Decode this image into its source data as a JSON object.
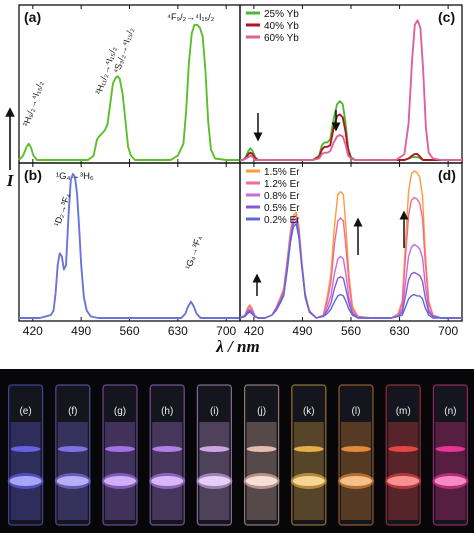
{
  "figure": {
    "xlabel": "λ / nm",
    "ylabel": "I",
    "photo_labels": [
      "(e)",
      "(f)",
      "(g)",
      "(h)",
      "(i)",
      "(j)",
      "(k)",
      "(l)",
      "(m)",
      "(n)"
    ],
    "photo_colors": [
      "#6f6cff",
      "#8f7dff",
      "#b47cff",
      "#c58cff",
      "#e2b6ff",
      "#ffd0c0",
      "#ffc24d",
      "#ff9a3b",
      "#ff4a4a",
      "#ff3aa6"
    ]
  },
  "chart_data": [
    {
      "panel": "(a)",
      "type": "line",
      "xlim": [
        400,
        720
      ],
      "xticks": [
        420,
        490,
        560,
        630,
        700
      ],
      "ylim": [
        0,
        1
      ],
      "color": "#5cbf2a",
      "series": [
        {
          "x": [
            400,
            406,
            411,
            414,
            417,
            421,
            426,
            440,
            470,
            500,
            508,
            513,
            516,
            520,
            524,
            528,
            532,
            536,
            540,
            543,
            546,
            550,
            554,
            558,
            562,
            568,
            580,
            620,
            630,
            638,
            642,
            646,
            650,
            654,
            658,
            662,
            666,
            670,
            674,
            678,
            684,
            700,
            720
          ],
          "y": [
            0.0,
            0.03,
            0.09,
            0.11,
            0.09,
            0.03,
            0.0,
            0.0,
            0.0,
            0.0,
            0.03,
            0.14,
            0.16,
            0.18,
            0.2,
            0.24,
            0.38,
            0.52,
            0.56,
            0.57,
            0.55,
            0.45,
            0.27,
            0.09,
            0.03,
            0.0,
            0.0,
            0.0,
            0.03,
            0.11,
            0.33,
            0.66,
            0.86,
            0.92,
            0.92,
            0.9,
            0.84,
            0.6,
            0.26,
            0.07,
            0.01,
            0.0,
            0.0
          ]
        }
      ],
      "annotations": [
        {
          "text": "²H₉/₂→⁴I₁₅/₂",
          "x": 414
        },
        {
          "text": "²H₁₁/₂→⁴I₁₅/₂",
          "x": 519
        },
        {
          "text": "⁴S₃/₂→⁴I₁₅/₂",
          "x": 545
        },
        {
          "text": "⁴F₉/₂→⁴I₁₅/₂",
          "x": 658
        }
      ]
    },
    {
      "panel": "(b)",
      "type": "line",
      "xlim": [
        400,
        720
      ],
      "xticks": [
        420,
        490,
        560,
        630,
        700
      ],
      "ylim": [
        0,
        1
      ],
      "color": "#6a74d8",
      "series": [
        {
          "x": [
            400,
            430,
            446,
            450,
            453,
            456,
            459,
            462,
            465,
            468,
            472,
            475,
            478,
            481,
            484,
            487,
            490,
            494,
            498,
            504,
            515,
            600,
            635,
            641,
            645,
            649,
            653,
            657,
            663,
            680,
            720
          ],
          "y": [
            0.0,
            0.0,
            0.02,
            0.05,
            0.17,
            0.36,
            0.44,
            0.42,
            0.33,
            0.36,
            0.72,
            0.94,
            0.98,
            0.96,
            0.85,
            0.62,
            0.36,
            0.14,
            0.05,
            0.01,
            0.0,
            0.0,
            0.0,
            0.03,
            0.08,
            0.11,
            0.08,
            0.03,
            0.0,
            0.0,
            0.0
          ]
        }
      ],
      "annotations": [
        {
          "text": "¹G₄→³H₆",
          "x": 478
        },
        {
          "text": "¹D₂→³F₄",
          "x": 459
        },
        {
          "text": "¹G₄→³F₄",
          "x": 649
        }
      ]
    },
    {
      "panel": "(c)",
      "type": "line",
      "xlim": [
        400,
        720
      ],
      "xticks": [
        420,
        490,
        560,
        630,
        700
      ],
      "ylim": [
        0,
        1
      ],
      "series": [
        {
          "name": "25% Yb",
          "color": "#4bb83a",
          "x": [
            400,
            404,
            408,
            412,
            415,
            418,
            422,
            426,
            440,
            475,
            505,
            514,
            518,
            522,
            526,
            530,
            535,
            540,
            544,
            548,
            552,
            556,
            560,
            566,
            580,
            625,
            637,
            643,
            648,
            652,
            656,
            660,
            664,
            668,
            672,
            678,
            690,
            720
          ],
          "y": [
            0.0,
            0.0,
            0.02,
            0.06,
            0.08,
            0.06,
            0.02,
            0.0,
            0.0,
            0.0,
            0.0,
            0.03,
            0.1,
            0.12,
            0.12,
            0.14,
            0.28,
            0.38,
            0.4,
            0.38,
            0.26,
            0.08,
            0.02,
            0.0,
            0.0,
            0.0,
            0.0,
            0.01,
            0.02,
            0.02,
            0.02,
            0.01,
            0.0,
            0.0,
            0.0,
            0.0,
            0.0,
            0.0
          ]
        },
        {
          "name": "40% Yb",
          "color": "#b0141c",
          "x": [
            400,
            404,
            408,
            412,
            415,
            418,
            422,
            426,
            440,
            475,
            505,
            514,
            518,
            522,
            526,
            530,
            535,
            540,
            544,
            548,
            552,
            556,
            560,
            566,
            580,
            625,
            637,
            643,
            648,
            652,
            656,
            660,
            664,
            668,
            672,
            678,
            690,
            720
          ],
          "y": [
            0.0,
            0.0,
            0.01,
            0.04,
            0.05,
            0.04,
            0.01,
            0.0,
            0.0,
            0.0,
            0.0,
            0.02,
            0.07,
            0.09,
            0.09,
            0.1,
            0.22,
            0.3,
            0.31,
            0.29,
            0.2,
            0.06,
            0.01,
            0.0,
            0.0,
            0.0,
            0.0,
            0.01,
            0.03,
            0.04,
            0.04,
            0.02,
            0.0,
            0.0,
            0.0,
            0.0,
            0.0,
            0.0
          ]
        },
        {
          "name": "60% Yb",
          "color": "#e0609a",
          "x": [
            400,
            404,
            408,
            412,
            415,
            418,
            422,
            426,
            440,
            475,
            505,
            514,
            518,
            522,
            526,
            530,
            535,
            540,
            544,
            548,
            552,
            556,
            560,
            566,
            580,
            625,
            637,
            643,
            648,
            652,
            656,
            660,
            664,
            668,
            672,
            678,
            690,
            720
          ],
          "y": [
            0.0,
            0.0,
            0.01,
            0.02,
            0.03,
            0.02,
            0.0,
            0.0,
            0.0,
            0.0,
            0.0,
            0.01,
            0.04,
            0.05,
            0.05,
            0.06,
            0.12,
            0.16,
            0.17,
            0.16,
            0.11,
            0.03,
            0.01,
            0.0,
            0.0,
            0.0,
            0.04,
            0.25,
            0.68,
            0.92,
            0.95,
            0.9,
            0.62,
            0.22,
            0.05,
            0.01,
            0.0,
            0.0
          ]
        }
      ]
    },
    {
      "panel": "(d)",
      "type": "line",
      "xlim": [
        400,
        720
      ],
      "xticks": [
        420,
        490,
        560,
        630,
        700
      ],
      "ylim": [
        0,
        1
      ],
      "series": [
        {
          "name": "1.5% Er",
          "color": "#ff9a3c",
          "x": [
            400,
            407,
            411,
            414,
            417,
            421,
            426,
            436,
            446,
            452,
            458,
            463,
            468,
            473,
            477,
            481,
            485,
            489,
            494,
            500,
            510,
            520,
            526,
            531,
            536,
            541,
            545,
            549,
            553,
            557,
            562,
            570,
            590,
            618,
            628,
            634,
            639,
            643,
            647,
            651,
            655,
            659,
            663,
            667,
            672,
            678,
            690,
            720
          ],
          "y": [
            0.0,
            0.02,
            0.07,
            0.09,
            0.07,
            0.02,
            0.0,
            0.0,
            0.02,
            0.07,
            0.14,
            0.2,
            0.4,
            0.6,
            0.7,
            0.72,
            0.62,
            0.4,
            0.17,
            0.05,
            0.0,
            0.02,
            0.15,
            0.3,
            0.62,
            0.84,
            0.86,
            0.84,
            0.6,
            0.3,
            0.08,
            0.01,
            0.0,
            0.0,
            0.03,
            0.12,
            0.55,
            0.86,
            0.98,
            1.0,
            0.99,
            0.96,
            0.83,
            0.46,
            0.12,
            0.02,
            0.0,
            0.0
          ]
        },
        {
          "name": "1.2% Er",
          "color": "#f06a9a",
          "x": [
            400,
            407,
            411,
            414,
            417,
            421,
            426,
            436,
            446,
            452,
            458,
            463,
            468,
            473,
            477,
            481,
            485,
            489,
            494,
            500,
            510,
            520,
            526,
            531,
            536,
            541,
            545,
            549,
            553,
            557,
            562,
            570,
            590,
            618,
            628,
            634,
            639,
            643,
            647,
            651,
            655,
            659,
            663,
            667,
            672,
            678,
            690,
            720
          ],
          "y": [
            0.0,
            0.02,
            0.06,
            0.08,
            0.06,
            0.02,
            0.0,
            0.0,
            0.02,
            0.07,
            0.13,
            0.19,
            0.38,
            0.58,
            0.68,
            0.7,
            0.6,
            0.38,
            0.16,
            0.05,
            0.0,
            0.02,
            0.12,
            0.24,
            0.5,
            0.66,
            0.68,
            0.66,
            0.47,
            0.24,
            0.06,
            0.01,
            0.0,
            0.0,
            0.02,
            0.1,
            0.44,
            0.7,
            0.8,
            0.82,
            0.81,
            0.78,
            0.68,
            0.38,
            0.1,
            0.02,
            0.0,
            0.0
          ]
        },
        {
          "name": "0.8% Er",
          "color": "#c86ad8",
          "x": [
            400,
            407,
            411,
            414,
            417,
            421,
            426,
            436,
            446,
            452,
            458,
            463,
            468,
            473,
            477,
            481,
            485,
            489,
            494,
            500,
            510,
            520,
            526,
            531,
            536,
            541,
            545,
            549,
            553,
            557,
            562,
            570,
            590,
            618,
            628,
            634,
            639,
            643,
            647,
            651,
            655,
            659,
            663,
            667,
            672,
            678,
            690,
            720
          ],
          "y": [
            0.0,
            0.01,
            0.05,
            0.06,
            0.05,
            0.01,
            0.0,
            0.0,
            0.02,
            0.06,
            0.12,
            0.17,
            0.36,
            0.56,
            0.66,
            0.68,
            0.58,
            0.37,
            0.15,
            0.04,
            0.0,
            0.01,
            0.08,
            0.15,
            0.3,
            0.4,
            0.42,
            0.4,
            0.29,
            0.14,
            0.04,
            0.0,
            0.0,
            0.0,
            0.02,
            0.06,
            0.26,
            0.42,
            0.48,
            0.5,
            0.49,
            0.47,
            0.41,
            0.23,
            0.06,
            0.01,
            0.0,
            0.0
          ]
        },
        {
          "name": "0.5% Er",
          "color": "#8a5ad0",
          "x": [
            400,
            407,
            411,
            414,
            417,
            421,
            426,
            436,
            446,
            452,
            458,
            463,
            468,
            473,
            477,
            481,
            485,
            489,
            494,
            500,
            510,
            520,
            526,
            531,
            536,
            541,
            545,
            549,
            553,
            557,
            562,
            570,
            590,
            618,
            628,
            634,
            639,
            643,
            647,
            651,
            655,
            659,
            663,
            667,
            672,
            678,
            690,
            720
          ],
          "y": [
            0.0,
            0.01,
            0.04,
            0.05,
            0.04,
            0.01,
            0.0,
            0.0,
            0.02,
            0.06,
            0.11,
            0.16,
            0.34,
            0.54,
            0.64,
            0.66,
            0.56,
            0.36,
            0.15,
            0.04,
            0.0,
            0.01,
            0.05,
            0.1,
            0.2,
            0.27,
            0.28,
            0.27,
            0.19,
            0.1,
            0.03,
            0.0,
            0.0,
            0.0,
            0.01,
            0.04,
            0.16,
            0.26,
            0.3,
            0.31,
            0.3,
            0.29,
            0.25,
            0.14,
            0.04,
            0.01,
            0.0,
            0.0
          ]
        },
        {
          "name": "0.2% Er",
          "color": "#5a6ad8",
          "x": [
            400,
            407,
            411,
            414,
            417,
            421,
            426,
            436,
            446,
            452,
            458,
            463,
            468,
            473,
            477,
            481,
            485,
            489,
            494,
            500,
            510,
            520,
            526,
            531,
            536,
            541,
            545,
            549,
            553,
            557,
            562,
            570,
            590,
            618,
            628,
            634,
            639,
            643,
            647,
            651,
            655,
            659,
            663,
            667,
            672,
            678,
            690,
            720
          ],
          "y": [
            0.0,
            0.01,
            0.03,
            0.04,
            0.03,
            0.01,
            0.0,
            0.0,
            0.02,
            0.05,
            0.1,
            0.15,
            0.32,
            0.52,
            0.62,
            0.64,
            0.54,
            0.35,
            0.14,
            0.04,
            0.0,
            0.01,
            0.03,
            0.06,
            0.11,
            0.15,
            0.16,
            0.15,
            0.11,
            0.06,
            0.02,
            0.0,
            0.0,
            0.0,
            0.01,
            0.02,
            0.08,
            0.13,
            0.15,
            0.16,
            0.15,
            0.15,
            0.13,
            0.07,
            0.02,
            0.0,
            0.0,
            0.0
          ]
        }
      ]
    }
  ]
}
